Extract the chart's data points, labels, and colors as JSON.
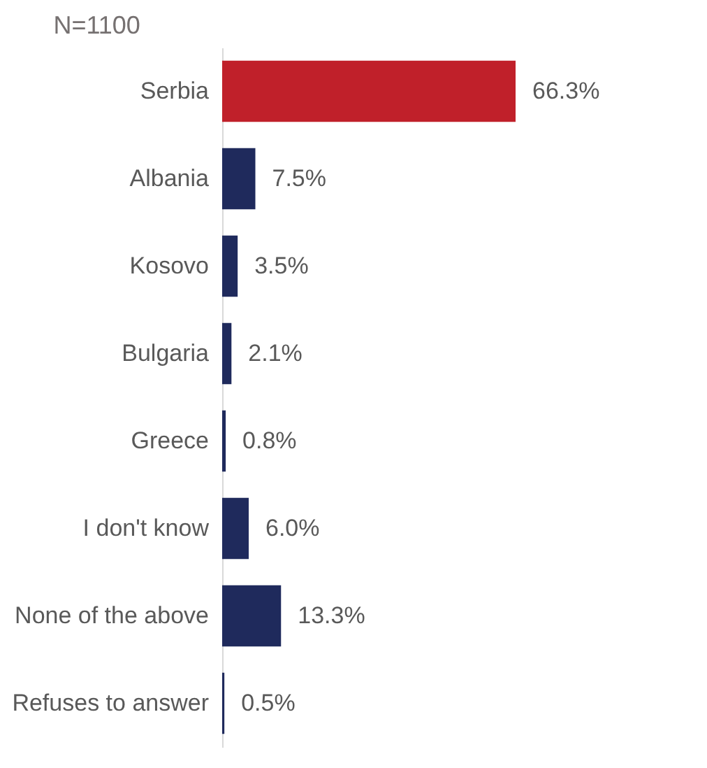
{
  "chart_data": {
    "type": "bar",
    "orientation": "horizontal",
    "title": "N=1100",
    "categories": [
      "Serbia",
      "Albania",
      "Kosovo",
      "Bulgaria",
      "Greece",
      "I don't know",
      "None of the above",
      "Refuses to answer"
    ],
    "values": [
      66.3,
      7.5,
      3.5,
      2.1,
      0.8,
      6.0,
      13.3,
      0.5
    ],
    "colors": [
      "#c0202a",
      "#1f2a5c",
      "#1f2a5c",
      "#1f2a5c",
      "#1f2a5c",
      "#1f2a5c",
      "#1f2a5c",
      "#1f2a5c"
    ],
    "value_labels": [
      "66.3%",
      "7.5%",
      "3.5%",
      "2.1%",
      "0.8%",
      "6.0%",
      "13.3%",
      "0.5%"
    ]
  }
}
